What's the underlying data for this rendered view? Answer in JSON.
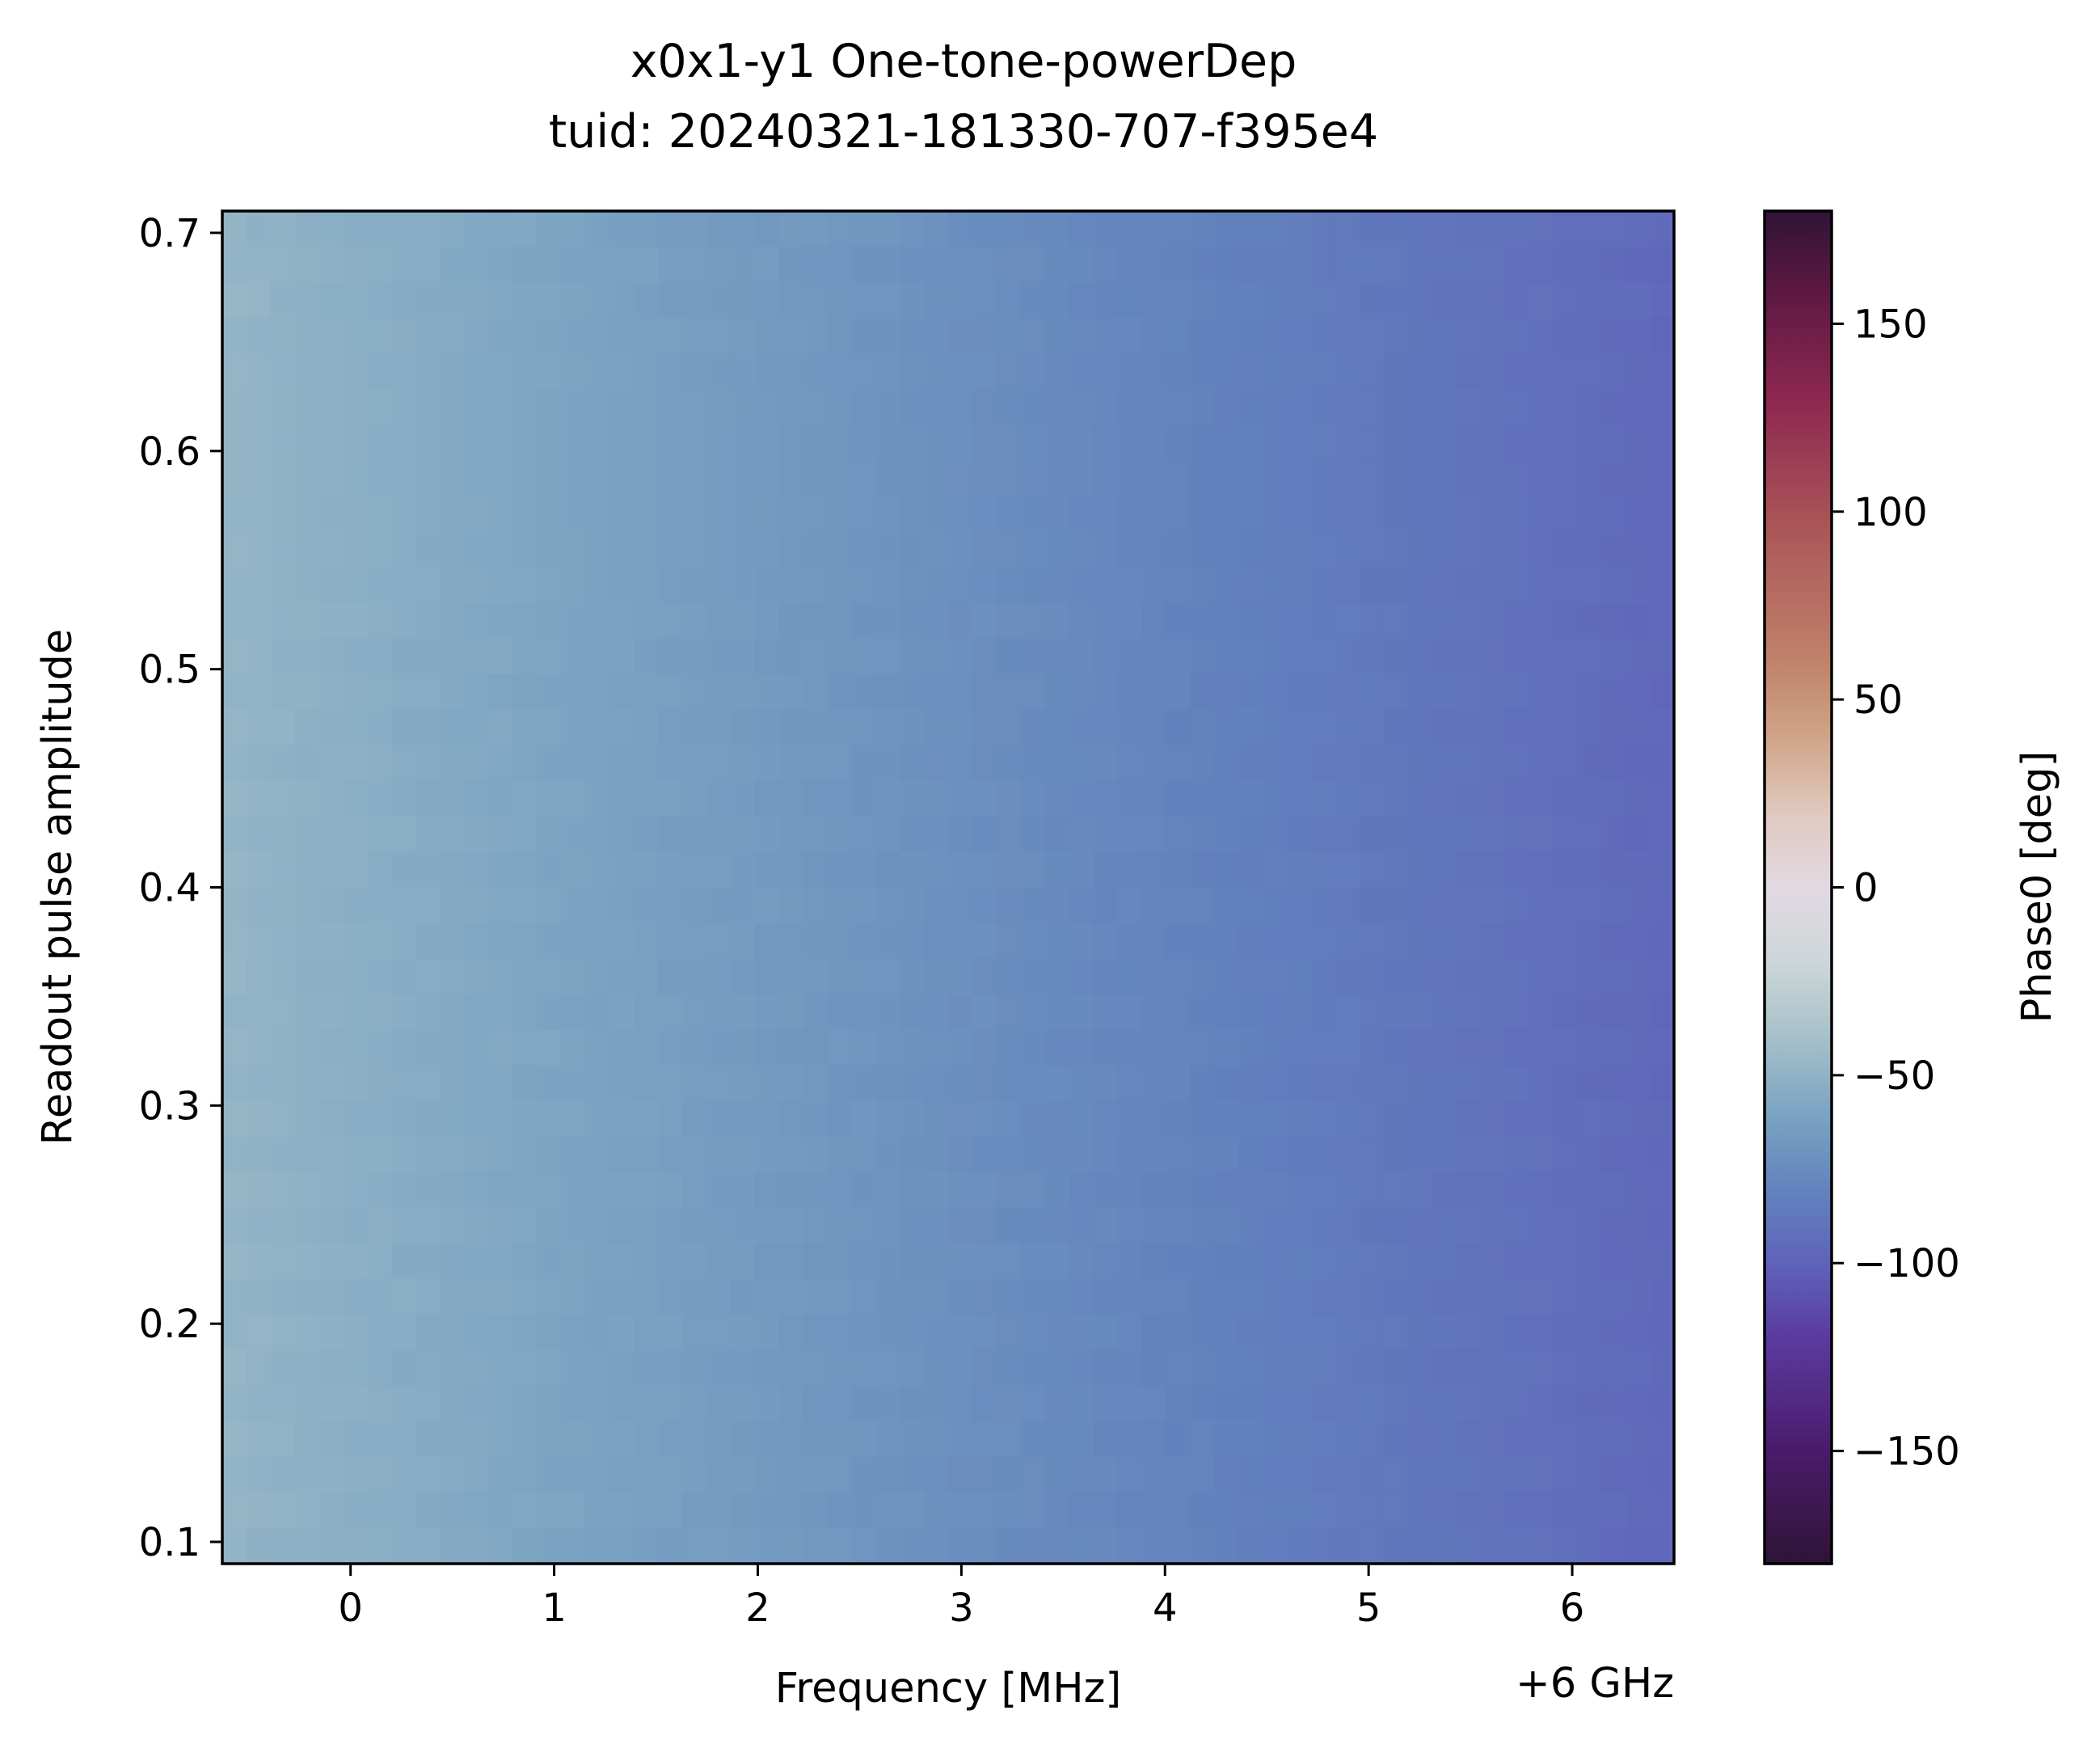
{
  "chart_data": {
    "type": "heatmap",
    "title": "x0x1-y1 One-tone-powerDep",
    "subtitle": "tuid: 20240321-181330-707-f395e4",
    "xlabel": "Frequency [MHz]",
    "x_offset_label": "+6 GHz",
    "ylabel": "Readout pulse amplitude",
    "colorbar_label": "Phase0 [deg]",
    "xlim": [
      -0.63,
      6.5
    ],
    "ylim": [
      0.09,
      0.71
    ],
    "clim": [
      -180,
      180
    ],
    "x_ticks": [
      0,
      1,
      2,
      3,
      4,
      5,
      6
    ],
    "x_tick_labels": [
      "0",
      "1",
      "2",
      "3",
      "4",
      "5",
      "6"
    ],
    "y_ticks": [
      0.1,
      0.2,
      0.3,
      0.4,
      0.5,
      0.6,
      0.7
    ],
    "y_tick_labels": [
      "0.1",
      "0.2",
      "0.3",
      "0.4",
      "0.5",
      "0.6",
      "0.7"
    ],
    "colorbar_ticks": [
      -150,
      -100,
      -50,
      0,
      50,
      100,
      150
    ],
    "colorbar_tick_labels": [
      "−150",
      "−100",
      "−50",
      "0",
      "50",
      "100",
      "150"
    ],
    "colormap": "twilight_shifted",
    "colormap_stops": [
      {
        "v": -180,
        "color": "#2f1436"
      },
      {
        "v": -150,
        "color": "#4a1b6b"
      },
      {
        "v": -120,
        "color": "#5b3aa0"
      },
      {
        "v": -100,
        "color": "#5f63bb"
      },
      {
        "v": -80,
        "color": "#6384bd"
      },
      {
        "v": -60,
        "color": "#7ba4c2"
      },
      {
        "v": -40,
        "color": "#a6c0c9"
      },
      {
        "v": -20,
        "color": "#cdd6d8"
      },
      {
        "v": 0,
        "color": "#e2d9e2"
      },
      {
        "v": 20,
        "color": "#e0c8be"
      },
      {
        "v": 40,
        "color": "#d0a488"
      },
      {
        "v": 60,
        "color": "#c0826a"
      },
      {
        "v": 100,
        "color": "#a85057"
      },
      {
        "v": 130,
        "color": "#8c2750"
      },
      {
        "v": 160,
        "color": "#5a1842"
      },
      {
        "v": 180,
        "color": "#2f1436"
      }
    ],
    "phase_model": {
      "description": "phase decreases roughly linearly with frequency, nearly independent of amplitude",
      "phase_at_min_freq_deg": -48,
      "phase_at_max_freq_deg": -97,
      "x_cells": 60,
      "y_cells": 38
    }
  }
}
